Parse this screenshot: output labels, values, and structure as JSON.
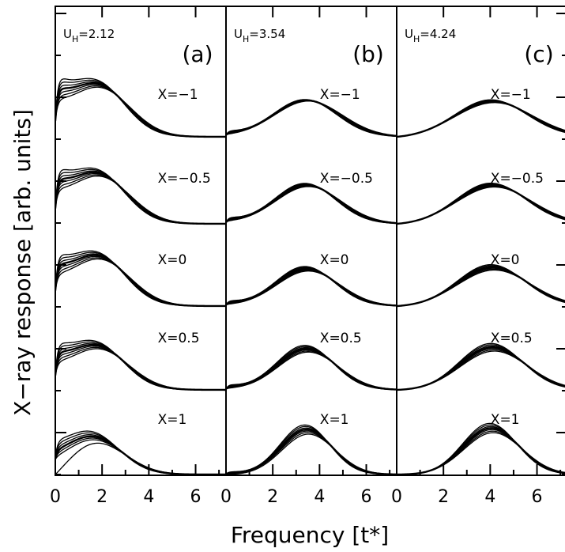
{
  "chart_data": {
    "type": "line",
    "xlabel": "Frequency [t*]",
    "ylabel": "X−ray response [arb. units]",
    "grid": false,
    "legend": "none",
    "line_color": "#000000",
    "shared_x_ticks": [
      "0",
      "2",
      "4",
      "6"
    ],
    "panels": [
      {
        "tag": "(a)",
        "u_prefix": "U",
        "u_sub": "H",
        "u_value": "=2.12",
        "xlim": [
          0,
          7.3
        ],
        "rows": [
          {
            "label": "X=−1",
            "peak_x": 1.85,
            "peak_h": 0.62,
            "width": 1.25,
            "spread": 0.035,
            "low": 0.5,
            "low_spread": 0.17
          },
          {
            "label": "X=−0.5",
            "peak_x": 1.85,
            "peak_h": 0.6,
            "width": 1.25,
            "spread": 0.035,
            "low": 0.45,
            "low_spread": 0.16
          },
          {
            "label": "X=0",
            "peak_x": 1.85,
            "peak_h": 0.6,
            "width": 1.25,
            "spread": 0.04,
            "low": 0.4,
            "low_spread": 0.15
          },
          {
            "label": "X=0.5",
            "peak_x": 1.8,
            "peak_h": 0.53,
            "width": 1.25,
            "spread": 0.05,
            "low": 0.35,
            "low_spread": 0.14
          },
          {
            "label": "X=1",
            "peak_x": 1.6,
            "peak_h": 0.47,
            "width": 1.25,
            "spread": 0.09,
            "low": 0.12,
            "low_spread": 0.12
          }
        ]
      },
      {
        "tag": "(b)",
        "u_prefix": "U",
        "u_sub": "H",
        "u_value": "=3.54",
        "xlim": [
          0,
          7.3
        ],
        "rows": [
          {
            "label": "X=−1",
            "peak_x": 3.45,
            "peak_h": 0.47,
            "width": 1.4,
            "spread": 0.02,
            "low": 0.04,
            "low_spread": 0.03
          },
          {
            "label": "X=−0.5",
            "peak_x": 3.45,
            "peak_h": 0.5,
            "width": 1.35,
            "spread": 0.04,
            "low": 0.05,
            "low_spread": 0.03
          },
          {
            "label": "X=0",
            "peak_x": 3.45,
            "peak_h": 0.48,
            "width": 1.3,
            "spread": 0.06,
            "low": 0.04,
            "low_spread": 0.03
          },
          {
            "label": "X=0.5",
            "peak_x": 3.45,
            "peak_h": 0.53,
            "width": 1.25,
            "spread": 0.08,
            "low": 0.04,
            "low_spread": 0.03
          },
          {
            "label": "X=1",
            "peak_x": 3.45,
            "peak_h": 0.58,
            "width": 1.1,
            "spread": 0.1,
            "low": 0.02,
            "low_spread": 0.02
          }
        ]
      },
      {
        "tag": "(c)",
        "u_prefix": "U",
        "u_sub": "H",
        "u_value": "=4.24",
        "xlim": [
          0,
          7.3
        ],
        "rows": [
          {
            "label": "X=−1",
            "peak_x": 4.1,
            "peak_h": 0.46,
            "width": 1.6,
            "spread": 0.04,
            "low": 0.0,
            "low_spread": 0.0
          },
          {
            "label": "X=−0.5",
            "peak_x": 4.1,
            "peak_h": 0.5,
            "width": 1.55,
            "spread": 0.05,
            "low": 0.0,
            "low_spread": 0.0
          },
          {
            "label": "X=0",
            "peak_x": 4.1,
            "peak_h": 0.5,
            "width": 1.5,
            "spread": 0.07,
            "low": 0.0,
            "low_spread": 0.0
          },
          {
            "label": "X=0.5",
            "peak_x": 4.1,
            "peak_h": 0.55,
            "width": 1.4,
            "spread": 0.09,
            "low": 0.0,
            "low_spread": 0.0
          },
          {
            "label": "X=1",
            "peak_x": 4.05,
            "peak_h": 0.6,
            "width": 1.2,
            "spread": 0.1,
            "low": 0.0,
            "low_spread": 0.0
          }
        ]
      }
    ]
  }
}
